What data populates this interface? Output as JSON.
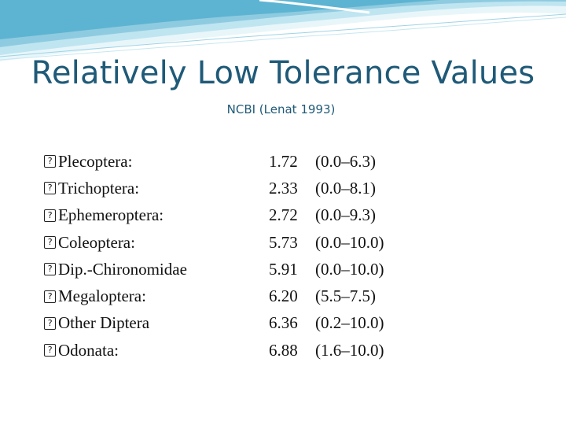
{
  "slide": {
    "title": "Relatively Low Tolerance Values",
    "subtitle": "NCBI (Lenat 1993)",
    "bullet_glyph": "?",
    "rows": [
      {
        "name": "Plecoptera:",
        "value": "1.72",
        "range": "(0.0–6.3)"
      },
      {
        "name": "Trichoptera:",
        "value": "2.33",
        "range": "(0.0–8.1)"
      },
      {
        "name": "Ephemeroptera:",
        "value": "2.72",
        "range": "(0.0–9.3)"
      },
      {
        "name": "Coleoptera:",
        "value": "5.73",
        "range": "(0.0–10.0)"
      },
      {
        "name": "Dip.-Chironomidae",
        "value": "5.91",
        "range": "(0.0–10.0)"
      },
      {
        "name": "Megaloptera:",
        "value": "6.20",
        "range": "(5.5–7.5)"
      },
      {
        "name": "Other Diptera",
        "value": "6.36",
        "range": "(0.2–10.0)"
      },
      {
        "name": "Odonata:",
        "value": "6.88",
        "range": "(1.6–10.0)"
      }
    ]
  },
  "colors": {
    "title": "#1f5a78",
    "wave_light": "#d6eef6",
    "wave_mid": "#9fd3e6",
    "wave_dark": "#4aa9c9"
  }
}
